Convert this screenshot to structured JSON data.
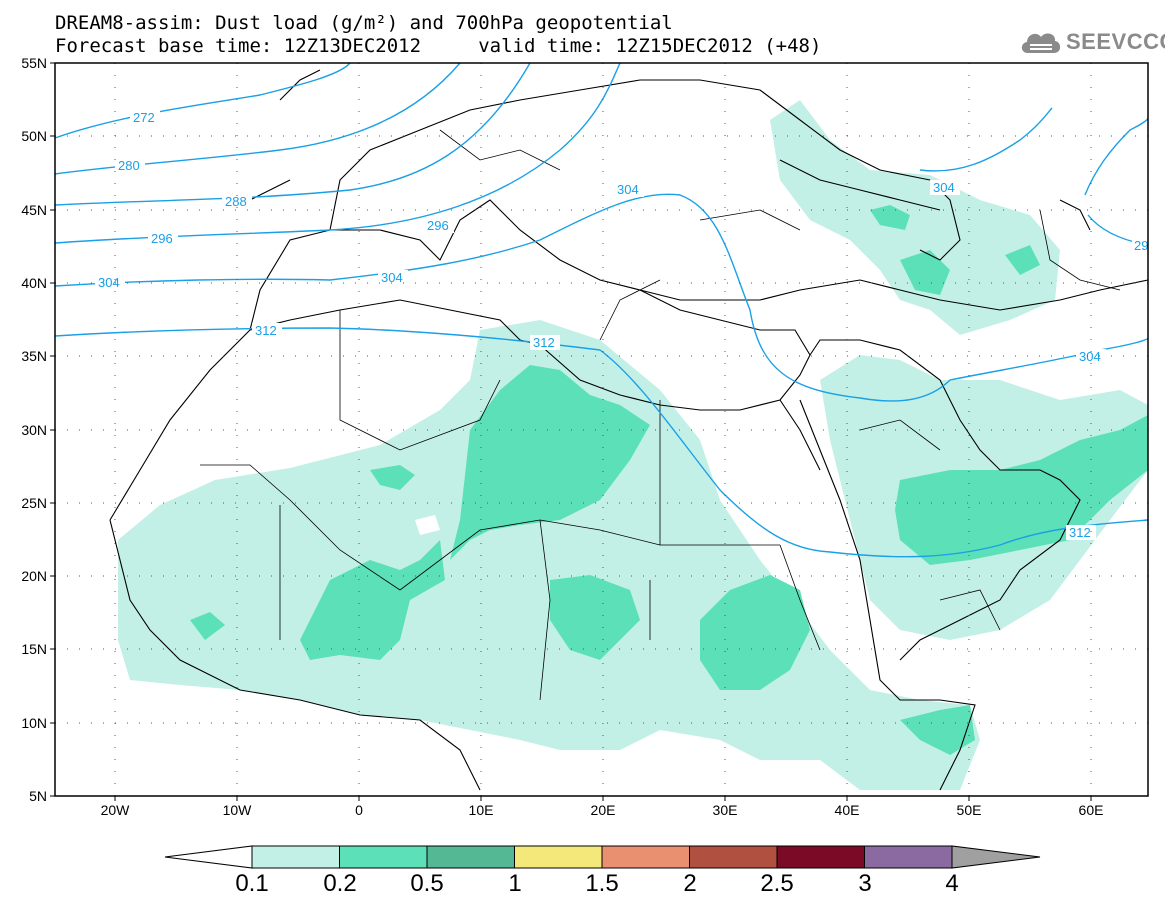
{
  "title": {
    "line1": "DREAM8-assim: Dust load (g/m²) and 700hPa geopotential",
    "line2": "Forecast base time: 12Z13DEC2012     valid time: 12Z15DEC2012 (+48)"
  },
  "logo": {
    "icon": "cloud-icon",
    "text": "SEEVCCC"
  },
  "map": {
    "lon_range": [
      -25,
      65
    ],
    "lat_range": [
      5,
      55
    ],
    "lat_ticks": [
      "55N",
      "50N",
      "45N",
      "40N",
      "35N",
      "30N",
      "25N",
      "20N",
      "15N",
      "10N",
      "5N"
    ],
    "lon_ticks": [
      "20W",
      "10W",
      "0",
      "10E",
      "20E",
      "30E",
      "40E",
      "50E",
      "60E"
    ],
    "contour_labels": [
      "272",
      "280",
      "288",
      "296",
      "304",
      "296",
      "304",
      "304",
      "312",
      "312",
      "304",
      "304",
      "312",
      "29"
    ],
    "contour_color": "#1aa0e6"
  },
  "colorbar": {
    "colors": [
      "#c3f0e6",
      "#5ce0b8",
      "#55b895",
      "#f5e87a",
      "#e89070",
      "#b05040",
      "#7a0a25",
      "#8a6aa0"
    ],
    "arrow_colors": {
      "low": "#ffffff",
      "high": "#a0a0a0"
    },
    "labels": [
      "0.1",
      "0.2",
      "0.5",
      "1",
      "1.5",
      "2",
      "2.5",
      "3",
      "4"
    ]
  }
}
